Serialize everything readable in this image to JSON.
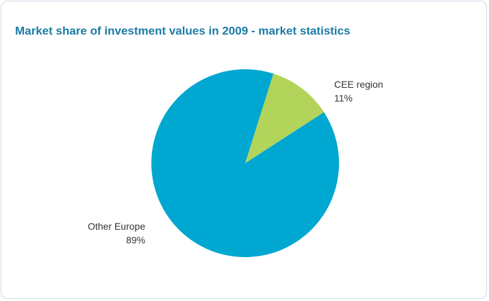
{
  "chart_data": {
    "type": "pie",
    "title": "Market share of investment values in 2009 - market statistics",
    "categories": [
      "CEE region",
      "Other Europe"
    ],
    "values": [
      11,
      89
    ],
    "value_labels": [
      "11%",
      "89%"
    ],
    "colors": [
      "#b3d45a",
      "#00a7d0"
    ]
  }
}
